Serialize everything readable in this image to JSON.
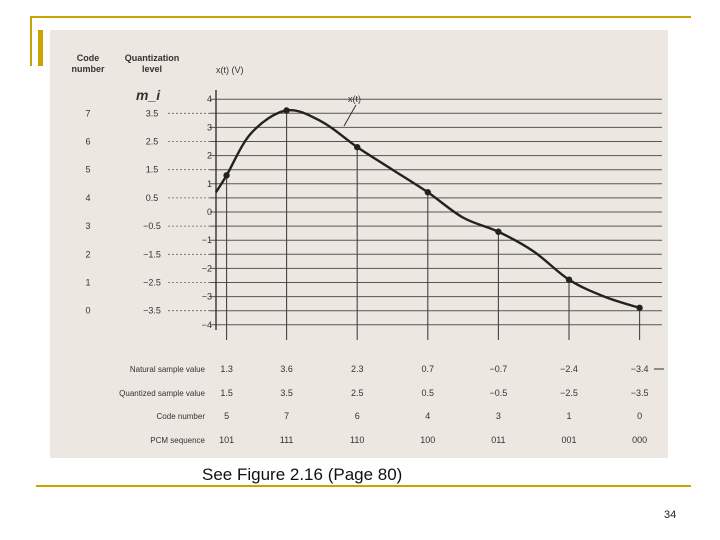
{
  "slide": {
    "caption": "See Figure 2.16 (Page 80)",
    "page_number": "34",
    "accent_color": "#c9a400"
  },
  "chart_data": {
    "type": "line",
    "header": {
      "code_number": [
        "Code",
        "number"
      ],
      "quantization_level": [
        "Quantization",
        "level"
      ],
      "y_axis_label": "x(t) (V)",
      "handwritten_note": "m_i",
      "curve_label": "x(t)"
    },
    "y_ticks": [
      4,
      3,
      2,
      1,
      0,
      -1,
      -2,
      -3,
      -4
    ],
    "ylim": [
      -4,
      4
    ],
    "quantization_levels": [
      {
        "code": "7",
        "level": "3.5",
        "value": 3.5
      },
      {
        "code": "6",
        "level": "2.5",
        "value": 2.5
      },
      {
        "code": "5",
        "level": "1.5",
        "value": 1.5
      },
      {
        "code": "4",
        "level": "0.5",
        "value": 0.5
      },
      {
        "code": "3",
        "level": "−0.5",
        "value": -0.5
      },
      {
        "code": "2",
        "level": "−1.5",
        "value": -1.5
      },
      {
        "code": "1",
        "level": "−2.5",
        "value": -2.5
      },
      {
        "code": "0",
        "level": "−3.5",
        "value": -3.5
      }
    ],
    "curve": [
      [
        0,
        0.7
      ],
      [
        0.15,
        1.3
      ],
      [
        0.5,
        2.8
      ],
      [
        1,
        3.6
      ],
      [
        1.5,
        3.2
      ],
      [
        2,
        2.3
      ],
      [
        2.5,
        1.5
      ],
      [
        3,
        0.7
      ],
      [
        3.5,
        -0.2
      ],
      [
        4,
        -0.7
      ],
      [
        4.5,
        -1.4
      ],
      [
        5,
        -2.4
      ],
      [
        5.5,
        -3.0
      ],
      [
        6,
        -3.4
      ]
    ],
    "samples": [
      {
        "t": 0.15,
        "natural": "1.3",
        "quantized": "1.5",
        "code": "5",
        "pcm": "101",
        "value": 1.3
      },
      {
        "t": 1,
        "natural": "3.6",
        "quantized": "3.5",
        "code": "7",
        "pcm": "111",
        "value": 3.6
      },
      {
        "t": 2,
        "natural": "2.3",
        "quantized": "2.5",
        "code": "6",
        "pcm": "110",
        "value": 2.3
      },
      {
        "t": 3,
        "natural": "0.7",
        "quantized": "0.5",
        "code": "4",
        "pcm": "100",
        "value": 0.7
      },
      {
        "t": 4,
        "natural": "−0.7",
        "quantized": "−0.5",
        "code": "3",
        "pcm": "011",
        "value": -0.7
      },
      {
        "t": 5,
        "natural": "−2.4",
        "quantized": "−2.5",
        "code": "1",
        "pcm": "001",
        "value": -2.4
      },
      {
        "t": 6,
        "natural": "−3.4",
        "quantized": "−3.5",
        "code": "0",
        "pcm": "000",
        "value": -3.4
      }
    ],
    "row_labels": {
      "natural": "Natural sample value",
      "quantized": "Quantized sample value",
      "code": "Code number",
      "pcm": "PCM sequence"
    }
  }
}
